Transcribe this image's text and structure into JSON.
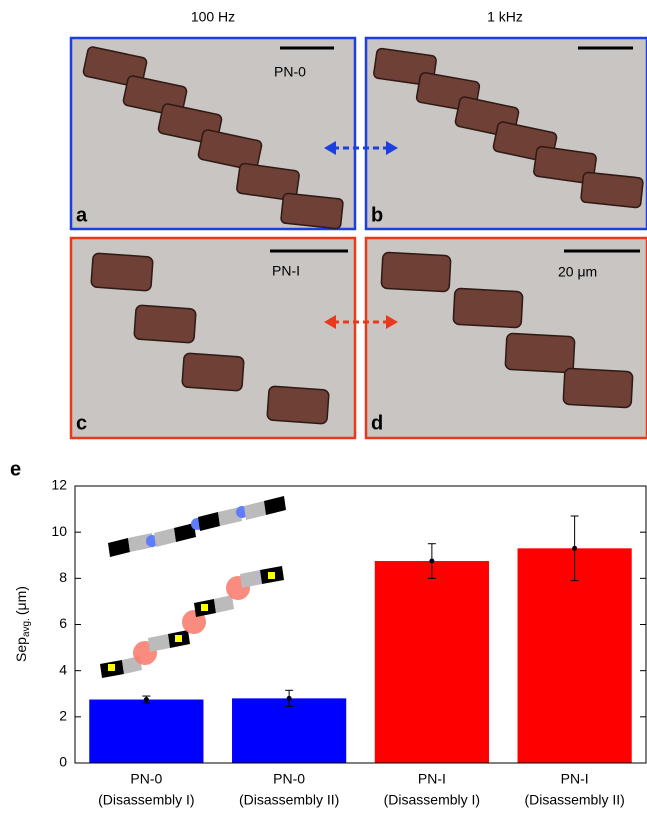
{
  "figure": {
    "headers": [
      "100 Hz",
      "1 kHz"
    ],
    "panels": [
      {
        "letter": "a",
        "label": "PN-0"
      },
      {
        "letter": "b"
      },
      {
        "letter": "c",
        "label": "PN-I"
      },
      {
        "letter": "d",
        "label": "20 μm"
      }
    ],
    "chart_letter": "e"
  },
  "chart_data": {
    "type": "bar",
    "y_label": {
      "main": "Sep",
      "sub": "avg.",
      "unit": "(μm)"
    },
    "categories": [
      [
        "PN-0",
        "(Disassembly I)"
      ],
      [
        "PN-0",
        "(Disassembly II)"
      ],
      [
        "PN-I",
        "(Disassembly I)"
      ],
      [
        "PN-I",
        "(Disassembly II)"
      ]
    ],
    "values": [
      2.75,
      2.8,
      8.75,
      9.3
    ],
    "errors": [
      0.15,
      0.35,
      0.75,
      1.4
    ],
    "colors": [
      "#0000ff",
      "#0000ff",
      "#ff0000",
      "#ff0000"
    ],
    "ylim": [
      0,
      12
    ],
    "yticks": [
      0,
      2,
      4,
      6,
      8,
      10,
      12
    ],
    "grid": false
  }
}
